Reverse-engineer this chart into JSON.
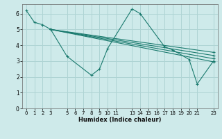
{
  "xlabel": "Humidex (Indice chaleur)",
  "ylabel": "",
  "bg_color": "#ceeaea",
  "grid_color": "#afd4d4",
  "line_color": "#1a7a6e",
  "xlim": [
    -0.5,
    23.5
  ],
  "ylim": [
    0,
    6.6
  ],
  "xticks": [
    0,
    1,
    2,
    3,
    5,
    6,
    7,
    8,
    9,
    10,
    11,
    13,
    14,
    15,
    16,
    17,
    18,
    19,
    20,
    21,
    23
  ],
  "yticks": [
    0,
    1,
    2,
    3,
    4,
    5,
    6
  ],
  "lines": [
    {
      "x": [
        0,
        1,
        2,
        3,
        5,
        8,
        9,
        10,
        13,
        14,
        17,
        18,
        20,
        21,
        23
      ],
      "y": [
        6.2,
        5.45,
        5.3,
        5.0,
        3.3,
        2.1,
        2.5,
        3.8,
        6.3,
        6.0,
        3.9,
        3.7,
        3.1,
        1.55,
        3.0
      ]
    },
    {
      "x": [
        3,
        23
      ],
      "y": [
        5.0,
        3.55
      ]
    },
    {
      "x": [
        3,
        23
      ],
      "y": [
        5.0,
        3.35
      ]
    },
    {
      "x": [
        3,
        23
      ],
      "y": [
        5.0,
        3.15
      ]
    },
    {
      "x": [
        3,
        23
      ],
      "y": [
        5.0,
        2.95
      ]
    }
  ]
}
